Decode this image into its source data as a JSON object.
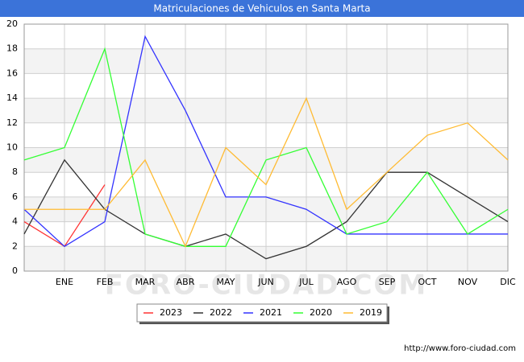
{
  "chart_data": {
    "type": "line",
    "title": "Matriculaciones de Vehiculos en Santa Marta",
    "categories": [
      null,
      "ENE",
      "FEB",
      "MAR",
      "ABR",
      "MAY",
      "JUN",
      "JUL",
      "AGO",
      "SEP",
      "OCT",
      "NOV",
      "DIC"
    ],
    "series": [
      {
        "name": "2023",
        "color": "#ff3333",
        "values": [
          4,
          2,
          7,
          null,
          null,
          null,
          null,
          null,
          null,
          null,
          null,
          null,
          null
        ]
      },
      {
        "name": "2022",
        "color": "#333333",
        "values": [
          3,
          9,
          5,
          3,
          2,
          3,
          1,
          2,
          4,
          8,
          8,
          6,
          4
        ]
      },
      {
        "name": "2021",
        "color": "#3333ff",
        "values": [
          5,
          2,
          4,
          19,
          13,
          6,
          6,
          5,
          3,
          3,
          3,
          3,
          3
        ]
      },
      {
        "name": "2020",
        "color": "#33ff33",
        "values": [
          9,
          10,
          18,
          3,
          2,
          2,
          9,
          10,
          3,
          4,
          8,
          3,
          5
        ]
      },
      {
        "name": "2019",
        "color": "#ffbb33",
        "values": [
          5,
          5,
          5,
          9,
          2,
          10,
          7,
          14,
          5,
          8,
          11,
          12,
          9
        ]
      }
    ],
    "ylim": [
      0,
      20
    ],
    "yticks": [
      0,
      2,
      4,
      6,
      8,
      10,
      12,
      14,
      16,
      18,
      20
    ],
    "grid": true,
    "legend": "bottom",
    "watermark": "FORO-CIUDAD.COM",
    "source": "http://www.foro-ciudad.com"
  }
}
